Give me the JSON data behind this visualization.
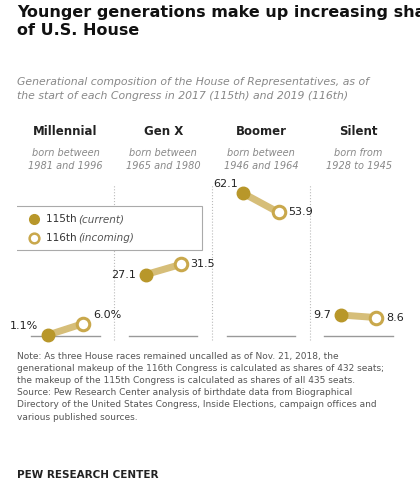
{
  "title": "Younger generations make up increasing shares\nof U.S. House",
  "subtitle": "Generational composition of the House of Representatives, as of\nthe start of each Congress in 2017 (115th) and 2019 (116th)",
  "categories": [
    "Millennial",
    "Gen X",
    "Boomer",
    "Silent"
  ],
  "cat_subtitles": [
    "born between\n1981 and 1996",
    "born between\n1965 and 1980",
    "born between\n1946 and 1964",
    "born from\n1928 to 1945"
  ],
  "values_115": [
    1.1,
    27.1,
    62.1,
    9.7
  ],
  "values_116": [
    6.0,
    31.5,
    53.9,
    8.6
  ],
  "labels_115": [
    "1.1%",
    "27.1",
    "62.1",
    "9.7"
  ],
  "labels_116": [
    "6.0%",
    "31.5",
    "53.9",
    "8.6"
  ],
  "color_filled": "#B8972A",
  "color_open": "#C9A84C",
  "line_color": "#C9A84C",
  "bg_color": "#FFFFFF",
  "note": "Note: As three House races remained uncalled as of Nov. 21, 2018, the\ngenerational makeup of the 116th Congress is calculated as shares of 432 seats;\nthe makeup of the 115th Congress is calculated as shares of all 435 seats.\nSource: Pew Research Center analysis of birthdate data from Biographical\nDirectory of the United States Congress, Inside Elections, campaign offices and\nvarious published sources.",
  "source_label": "PEW RESEARCH CENTER",
  "legend_115": "115th",
  "legend_115_italic": "(current)",
  "legend_116": "116th",
  "legend_116_italic": "(incoming)",
  "x_positions": [
    0,
    1,
    2,
    3
  ],
  "ymax": 68,
  "ymin": -4
}
